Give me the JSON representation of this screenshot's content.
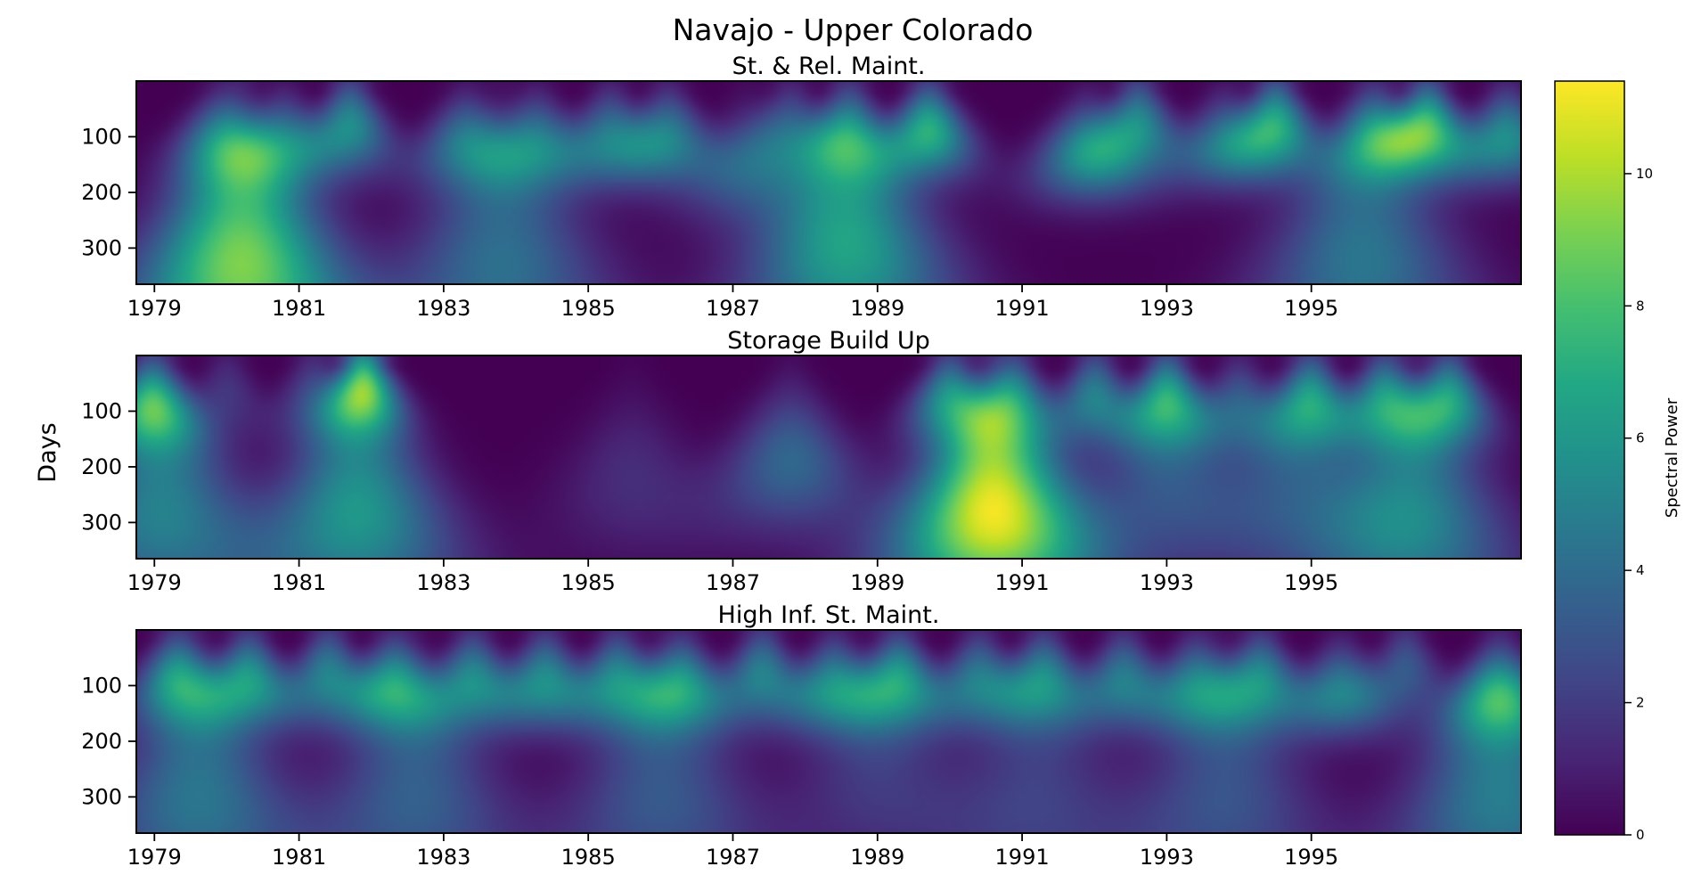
{
  "title": "Navajo - Upper Colorado",
  "ylabel": "Days",
  "colorbar": {
    "label": "Spectral Power",
    "ticks": [
      "0",
      "2",
      "4",
      "6",
      "8",
      "10"
    ],
    "range": [
      0,
      11.4
    ],
    "colormap": "viridis"
  },
  "chart_data": [
    {
      "type": "heatmap",
      "title": "St. & Rel. Maint.",
      "x_range": [
        1978.75,
        1997.9
      ],
      "y_range": [
        0,
        365
      ],
      "y_inverted": true,
      "xticks": [
        "1979",
        "1981",
        "1983",
        "1985",
        "1987",
        "1989",
        "1991",
        "1993",
        "1995"
      ],
      "yticks": [
        "100",
        "200",
        "300"
      ],
      "hotspots": [
        {
          "x": 1980.2,
          "period": 330,
          "power": 9.2
        },
        {
          "x": 1979.9,
          "period": 110,
          "power": 4.5
        },
        {
          "x": 1980.8,
          "period": 110,
          "power": 4.5
        },
        {
          "x": 1981.7,
          "period": 80,
          "power": 5.5
        },
        {
          "x": 1983.3,
          "period": 110,
          "power": 4.5
        },
        {
          "x": 1983.8,
          "period": 330,
          "power": 4.2
        },
        {
          "x": 1984.3,
          "period": 110,
          "power": 4.5
        },
        {
          "x": 1985.3,
          "period": 100,
          "power": 4.5
        },
        {
          "x": 1986.1,
          "period": 100,
          "power": 4.8
        },
        {
          "x": 1987.2,
          "period": 160,
          "power": 3.0
        },
        {
          "x": 1987.8,
          "period": 90,
          "power": 3.5
        },
        {
          "x": 1988.6,
          "period": 300,
          "power": 6.5
        },
        {
          "x": 1989.7,
          "period": 90,
          "power": 7.2
        },
        {
          "x": 1988.6,
          "period": 100,
          "power": 5.0
        },
        {
          "x": 1991.9,
          "period": 130,
          "power": 5.5
        },
        {
          "x": 1992.6,
          "period": 80,
          "power": 5.5
        },
        {
          "x": 1993.8,
          "period": 110,
          "power": 4.2
        },
        {
          "x": 1994.5,
          "period": 80,
          "power": 7.0
        },
        {
          "x": 1995.9,
          "period": 100,
          "power": 5.5
        },
        {
          "x": 1996.6,
          "period": 85,
          "power": 8.0
        },
        {
          "x": 1995.7,
          "period": 320,
          "power": 4.5
        },
        {
          "x": 1997.7,
          "period": 100,
          "power": 5.5
        }
      ]
    },
    {
      "type": "heatmap",
      "title": "Storage Build Up",
      "x_range": [
        1978.75,
        1997.9
      ],
      "y_range": [
        0,
        365
      ],
      "y_inverted": true,
      "xticks": [
        "1979",
        "1981",
        "1983",
        "1985",
        "1987",
        "1989",
        "1991",
        "1993",
        "1995"
      ],
      "yticks": [
        "100",
        "200",
        "300"
      ],
      "hotspots": [
        {
          "x": 1978.95,
          "period": 90,
          "power": 7.2
        },
        {
          "x": 1979.1,
          "period": 280,
          "power": 5.0
        },
        {
          "x": 1980.0,
          "period": 70,
          "power": 1.8
        },
        {
          "x": 1981.2,
          "period": 70,
          "power": 2.5
        },
        {
          "x": 1981.9,
          "period": 60,
          "power": 8.2
        },
        {
          "x": 1981.8,
          "period": 280,
          "power": 6.0
        },
        {
          "x": 1985.6,
          "period": 220,
          "power": 1.5
        },
        {
          "x": 1987.8,
          "period": 190,
          "power": 3.8
        },
        {
          "x": 1990.0,
          "period": 80,
          "power": 6.0
        },
        {
          "x": 1990.9,
          "period": 80,
          "power": 5.0
        },
        {
          "x": 1990.6,
          "period": 280,
          "power": 11.2
        },
        {
          "x": 1992.0,
          "period": 75,
          "power": 5.0
        },
        {
          "x": 1993.0,
          "period": 80,
          "power": 6.5
        },
        {
          "x": 1993.0,
          "period": 230,
          "power": 3.0
        },
        {
          "x": 1994.0,
          "period": 90,
          "power": 3.5
        },
        {
          "x": 1995.0,
          "period": 80,
          "power": 6.0
        },
        {
          "x": 1994.8,
          "period": 230,
          "power": 3.0
        },
        {
          "x": 1996.0,
          "period": 80,
          "power": 6.0
        },
        {
          "x": 1996.9,
          "period": 80,
          "power": 6.5
        },
        {
          "x": 1996.4,
          "period": 290,
          "power": 5.2
        }
      ]
    },
    {
      "type": "heatmap",
      "title": "High Inf. St. Maint.",
      "x_range": [
        1978.75,
        1997.9
      ],
      "y_range": [
        0,
        365
      ],
      "y_inverted": true,
      "xticks": [
        "1979",
        "1981",
        "1983",
        "1985",
        "1987",
        "1989",
        "1991",
        "1993",
        "1995"
      ],
      "yticks": [
        "100",
        "200",
        "300"
      ],
      "hotspots": [
        {
          "x": 1979.3,
          "period": 90,
          "power": 6.0
        },
        {
          "x": 1979.6,
          "period": 300,
          "power": 4.5
        },
        {
          "x": 1980.3,
          "period": 90,
          "power": 6.2
        },
        {
          "x": 1981.4,
          "period": 80,
          "power": 5.0
        },
        {
          "x": 1982.3,
          "period": 100,
          "power": 6.0
        },
        {
          "x": 1982.6,
          "period": 300,
          "power": 3.5
        },
        {
          "x": 1983.4,
          "period": 90,
          "power": 5.5
        },
        {
          "x": 1984.4,
          "period": 90,
          "power": 5.5
        },
        {
          "x": 1985.4,
          "period": 90,
          "power": 5.5
        },
        {
          "x": 1986.3,
          "period": 100,
          "power": 5.8
        },
        {
          "x": 1986.0,
          "period": 300,
          "power": 3.2
        },
        {
          "x": 1987.4,
          "period": 80,
          "power": 5.0
        },
        {
          "x": 1988.4,
          "period": 100,
          "power": 5.5
        },
        {
          "x": 1989.3,
          "period": 90,
          "power": 6.2
        },
        {
          "x": 1989.0,
          "period": 260,
          "power": 2.0
        },
        {
          "x": 1990.4,
          "period": 90,
          "power": 4.8
        },
        {
          "x": 1991.3,
          "period": 90,
          "power": 5.2
        },
        {
          "x": 1991.2,
          "period": 300,
          "power": 2.2
        },
        {
          "x": 1992.4,
          "period": 90,
          "power": 4.8
        },
        {
          "x": 1993.4,
          "period": 100,
          "power": 5.0
        },
        {
          "x": 1994.3,
          "period": 90,
          "power": 5.5
        },
        {
          "x": 1993.8,
          "period": 300,
          "power": 3.0
        },
        {
          "x": 1995.4,
          "period": 110,
          "power": 4.8
        },
        {
          "x": 1996.3,
          "period": 70,
          "power": 3.2
        },
        {
          "x": 1997.6,
          "period": 120,
          "power": 6.2
        },
        {
          "x": 1997.6,
          "period": 300,
          "power": 4.8
        }
      ]
    }
  ]
}
